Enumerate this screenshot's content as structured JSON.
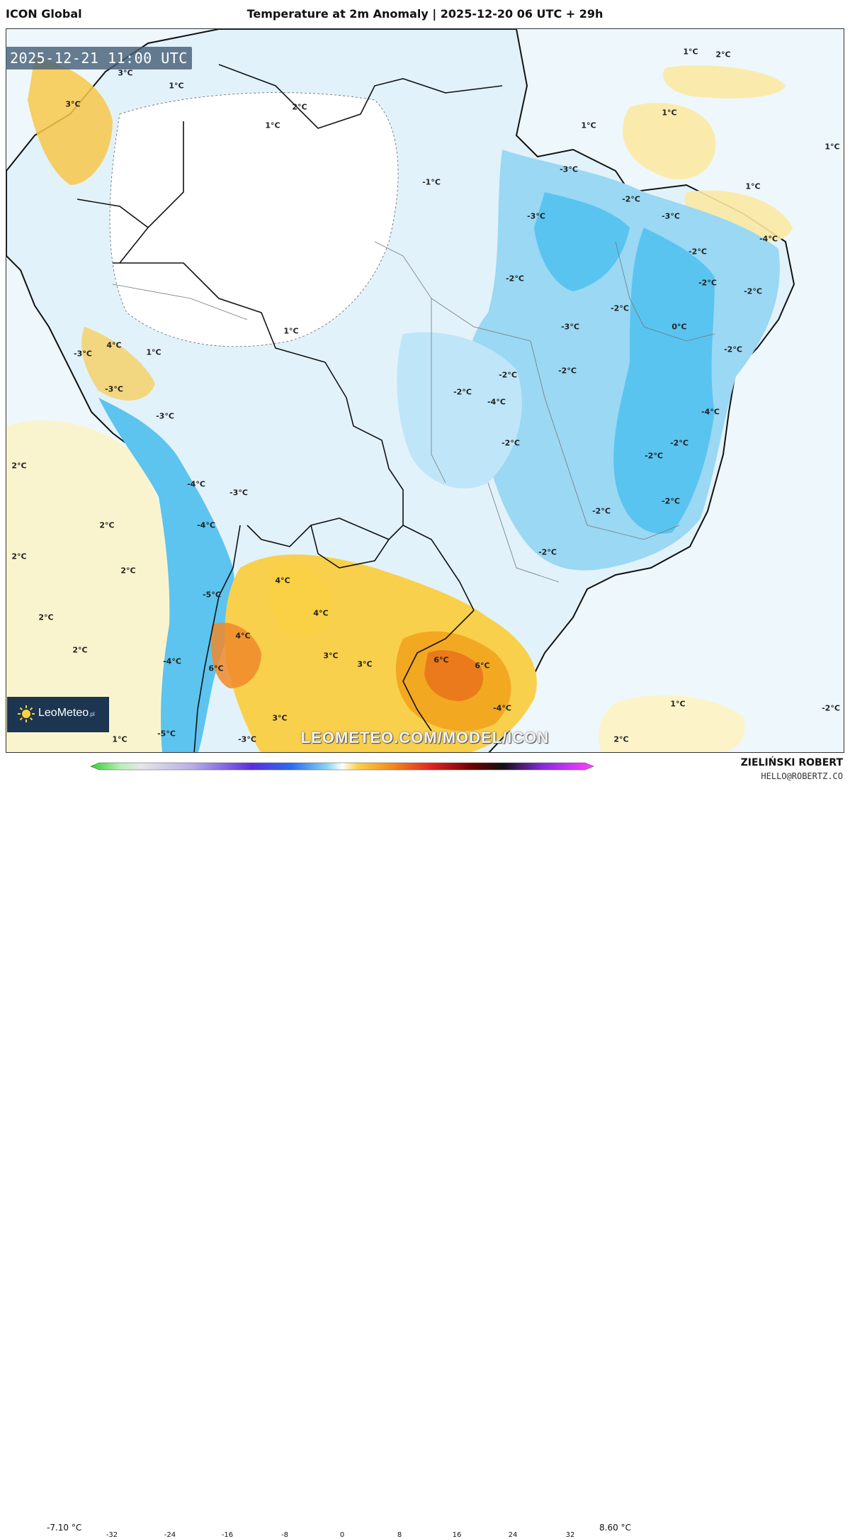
{
  "header": {
    "model_name": "ICON Global",
    "title": "Temperature at 2m Anomaly | 2025-12-20 06 UTC + 29h"
  },
  "map": {
    "valid_time": "2025-12-21 11:00 UTC",
    "watermark": "LEOMETEO.COM/MODEL/ICON",
    "logo_text": "LeoMeteo",
    "logo_tld": ".pl",
    "contour_labels": [
      "1°C",
      "2°C",
      "1°C",
      "1°C",
      "1°C",
      "1°C",
      "3°C",
      "3°C",
      "1°C",
      "2°C",
      "1°C",
      "-1°C",
      "-3°C",
      "-3°C",
      "-3°C",
      "-2°C",
      "-4°C",
      "-2°C",
      "-2°C",
      "-2°C",
      "-2°C",
      "0°C",
      "-2°C",
      "-3°C",
      "-2°C",
      "-2°C",
      "-2°C",
      "-2°C",
      "-4°C",
      "-4°C",
      "-2°C",
      "-2°C",
      "-2°C",
      "-2°C",
      "-2°C",
      "-2°C",
      "1°C",
      "-3°C",
      "4°C",
      "1°C",
      "-3°C",
      "-3°C",
      "-4°C",
      "-3°C",
      "-4°C",
      "-5°C",
      "-4°C",
      "-5°C",
      "-3°C",
      "2°C",
      "2°C",
      "2°C",
      "2°C",
      "2°C",
      "2°C",
      "4°C",
      "4°C",
      "4°C",
      "6°C",
      "3°C",
      "3°C",
      "6°C",
      "6°C",
      "3°C",
      "-4°C",
      "2°C",
      "1°C",
      "-2°C",
      "1°C"
    ]
  },
  "colorbar": {
    "min_label": "-7.10 °C",
    "max_label": "8.60 °C",
    "ticks": [
      "-32",
      "-24",
      "-16",
      "-8",
      "0",
      "8",
      "16",
      "24",
      "32"
    ]
  },
  "credits": {
    "author": "ZIELIŃSKI ROBERT",
    "email": "HELLO@ROBERTZ.CO"
  },
  "colors": {
    "cold_strong": "#3ab8ec",
    "cold_mid": "#8fd5f4",
    "cold_weak": "#d3eefb",
    "warm_weak": "#fbeea8",
    "warm_mid": "#f9cf45",
    "warm_strong": "#f3a21a",
    "hot": "#e8751a",
    "borders": "#111111"
  }
}
